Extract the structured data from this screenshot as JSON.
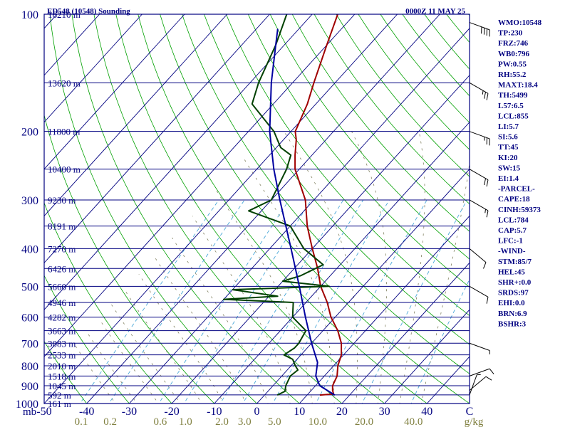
{
  "header": {
    "station_title": "ED548 (10548) Sounding",
    "time_title": "0000Z 11 MAY 25"
  },
  "chart_data": {
    "type": "line",
    "title": "ED548 (10548) Sounding",
    "xlabel": "",
    "ylabel": "mb",
    "xlim": [
      -50,
      50
    ],
    "ylim": [
      1000,
      100
    ],
    "y_scale": "log",
    "pressure_ticks": [
      "100",
      "200",
      "300",
      "400",
      "500",
      "600",
      "700",
      "800",
      "900",
      "1000"
    ],
    "pressure_levels": [
      100,
      200,
      300,
      400,
      500,
      600,
      700,
      800,
      900,
      1000
    ],
    "temperature_ticks": [
      "-50",
      "-40",
      "-30",
      "-20",
      "-10",
      "0",
      "10",
      "20",
      "30",
      "40",
      "C"
    ],
    "temperature_tick_values": [
      -50,
      -40,
      -30,
      -20,
      -10,
      0,
      10,
      20,
      30,
      40,
      50
    ],
    "axis_unit_label": "mb",
    "mixing_ratio_labels": [
      "0.1",
      "0.2",
      "0.6",
      "1.0",
      "2.0",
      "3.0",
      "5.0",
      "10.0",
      "20.0",
      "40.0"
    ],
    "mixing_ratio_unit": "g/kg",
    "height_labels": [
      {
        "p": 100,
        "label": "16210 m"
      },
      {
        "p": 150,
        "label": "13620 m"
      },
      {
        "p": 200,
        "label": "11800 m"
      },
      {
        "p": 250,
        "label": "10400 m"
      },
      {
        "p": 300,
        "label": "9230 m"
      },
      {
        "p": 350,
        "label": "8191 m"
      },
      {
        "p": 400,
        "label": "7270 m"
      },
      {
        "p": 450,
        "label": "6426 m"
      },
      {
        "p": 500,
        "label": "5660 m"
      },
      {
        "p": 550,
        "label": "4946 m"
      },
      {
        "p": 600,
        "label": "4282 m"
      },
      {
        "p": 650,
        "label": "3663 m"
      },
      {
        "p": 700,
        "label": "3083 m"
      },
      {
        "p": 750,
        "label": "2533 m"
      },
      {
        "p": 800,
        "label": "2010 m"
      },
      {
        "p": 850,
        "label": "1518 m"
      },
      {
        "p": 900,
        "label": "1045 m"
      },
      {
        "p": 950,
        "label": "592 m"
      },
      {
        "p": 1000,
        "label": "161 m"
      }
    ],
    "series": [
      {
        "kind": "temperature",
        "color": "#a00000",
        "points": [
          [
            951,
            13
          ],
          [
            945,
            16
          ],
          [
            925,
            15
          ],
          [
            900,
            14
          ],
          [
            850,
            13
          ],
          [
            800,
            11
          ],
          [
            750,
            9.5
          ],
          [
            700,
            7
          ],
          [
            650,
            3.5
          ],
          [
            600,
            -1
          ],
          [
            550,
            -5
          ],
          [
            500,
            -10
          ],
          [
            450,
            -14.5
          ],
          [
            400,
            -20
          ],
          [
            350,
            -26
          ],
          [
            300,
            -32
          ],
          [
            250,
            -41
          ],
          [
            230,
            -44
          ],
          [
            210,
            -47
          ],
          [
            200,
            -49
          ],
          [
            170,
            -52
          ],
          [
            150,
            -55
          ],
          [
            120,
            -60
          ],
          [
            100,
            -64
          ]
        ]
      },
      {
        "kind": "dewpoint",
        "color": "#004000",
        "points": [
          [
            951,
            3
          ],
          [
            930,
            4
          ],
          [
            900,
            3
          ],
          [
            850,
            2
          ],
          [
            820,
            2.5
          ],
          [
            800,
            1
          ],
          [
            770,
            -1
          ],
          [
            750,
            -4
          ],
          [
            720,
            -3
          ],
          [
            700,
            -3
          ],
          [
            650,
            -4
          ],
          [
            600,
            -10
          ],
          [
            550,
            -13
          ],
          [
            540,
            -30
          ],
          [
            530,
            -18
          ],
          [
            510,
            -30
          ],
          [
            500,
            -8
          ],
          [
            485,
            -20
          ],
          [
            470,
            -17
          ],
          [
            440,
            -14
          ],
          [
            400,
            -22
          ],
          [
            350,
            -30
          ],
          [
            320,
            -43
          ],
          [
            300,
            -40
          ],
          [
            250,
            -43
          ],
          [
            230,
            -45
          ],
          [
            220,
            -49
          ],
          [
            200,
            -54
          ],
          [
            170,
            -65
          ],
          [
            150,
            -68
          ],
          [
            120,
            -72
          ],
          [
            100,
            -76
          ]
        ]
      },
      {
        "kind": "parcel",
        "color": "#0000a0",
        "points": [
          [
            951,
            16.5
          ],
          [
            900,
            11
          ],
          [
            850,
            8
          ],
          [
            784,
            5.5
          ],
          [
            700,
            0
          ],
          [
            600,
            -7
          ],
          [
            500,
            -15
          ],
          [
            400,
            -25
          ],
          [
            300,
            -38
          ],
          [
            250,
            -46
          ],
          [
            200,
            -55
          ],
          [
            150,
            -65
          ],
          [
            120,
            -72
          ],
          [
            109,
            -75
          ]
        ]
      }
    ],
    "wind_barbs": [
      {
        "p": 105,
        "direction": 290,
        "speed": 40
      },
      {
        "p": 150,
        "direction": 300,
        "speed": 25
      },
      {
        "p": 200,
        "direction": 290,
        "speed": 25
      },
      {
        "p": 250,
        "direction": 300,
        "speed": 20
      },
      {
        "p": 300,
        "direction": 300,
        "speed": 15
      },
      {
        "p": 400,
        "direction": 310,
        "speed": 10
      },
      {
        "p": 500,
        "direction": 300,
        "speed": 10
      },
      {
        "p": 700,
        "direction": 290,
        "speed": 5
      },
      {
        "p": 850,
        "direction": 250,
        "speed": 10
      },
      {
        "p": 925,
        "direction": 230,
        "speed": 10
      },
      {
        "p": 950,
        "direction": 200,
        "speed": 5
      }
    ],
    "colors": {
      "isobar": "#000080",
      "isotherm": "#000080",
      "dry_adiabat": "#00a000",
      "moist_adiabat": "#808060",
      "mixing_ratio": "#4aa8d8",
      "frame": "#000080"
    }
  },
  "indices_panel": {
    "lines": [
      "WMO:10548",
      "TP:230",
      "FRZ:746",
      "WB0:796",
      "PW:0.55",
      "RH:55.2",
      "MAXT:18.4",
      "TH:5499",
      "L57:6.5",
      "LCL:855",
      "LI:5.7",
      "SI:5.6",
      "TT:45",
      "KI:20",
      "SW:15",
      "EI:1.4",
      "-PARCEL-",
      "CAPE:18",
      "CINH:59373",
      "LCL:784",
      "CAP:5.7",
      "LFC:-1",
      "-WIND-",
      "STM:85/7",
      "HEL:45",
      "SHR+:0.0",
      "SRDS:97",
      "EHI:0.0",
      "BRN:6.9",
      "BSHR:3"
    ]
  }
}
